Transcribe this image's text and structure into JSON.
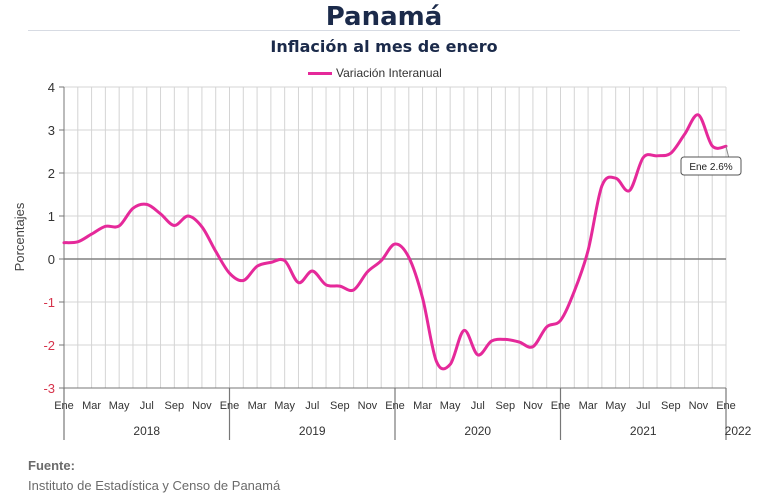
{
  "header": {
    "title": "Panamá",
    "subtitle": "Inflación al mes de enero"
  },
  "footer": {
    "label": "Fuente:",
    "source": "Instituto de Estadística y Censo de Panamá"
  },
  "colors": {
    "series": "#e5299a",
    "negative_tick": "#d6334b",
    "grid": "#d4d4d4",
    "zero_line": "#808080"
  },
  "chart_data": {
    "type": "line",
    "ylabel": "Porcentajes",
    "ylim": [
      -3,
      4
    ],
    "yticks": [
      "4",
      "3",
      "2",
      "1",
      "0",
      "-1",
      "-2",
      "-3"
    ],
    "grid": true,
    "legend_position": "top-center",
    "month_labels": [
      "Ene",
      "Mar",
      "May",
      "Jul",
      "Sep",
      "Nov",
      "Ene",
      "Mar",
      "May",
      "Jul",
      "Sep",
      "Nov",
      "Ene",
      "Mar",
      "May",
      "Jul",
      "Sep",
      "Nov",
      "Ene",
      "Mar",
      "May",
      "Jul",
      "Sep",
      "Nov",
      "Ene"
    ],
    "year_labels": [
      "2018",
      "2019",
      "2020",
      "2021",
      "2022"
    ],
    "annotation": "Ene 2.6%",
    "series": [
      {
        "name": "Variación Interanual",
        "values": [
          0.38,
          0.4,
          0.58,
          0.76,
          0.77,
          1.18,
          1.27,
          1.05,
          0.78,
          1.0,
          0.75,
          0.18,
          -0.33,
          -0.5,
          -0.17,
          -0.08,
          -0.04,
          -0.55,
          -0.28,
          -0.6,
          -0.63,
          -0.72,
          -0.3,
          -0.04,
          0.35,
          0.04,
          -0.91,
          -2.38,
          -2.45,
          -1.66,
          -2.23,
          -1.91,
          -1.87,
          -1.93,
          -2.04,
          -1.58,
          -1.43,
          -0.75,
          0.2,
          1.7,
          1.88,
          1.59,
          2.36,
          2.4,
          2.46,
          2.9,
          3.35,
          2.63,
          2.62
        ]
      }
    ]
  }
}
